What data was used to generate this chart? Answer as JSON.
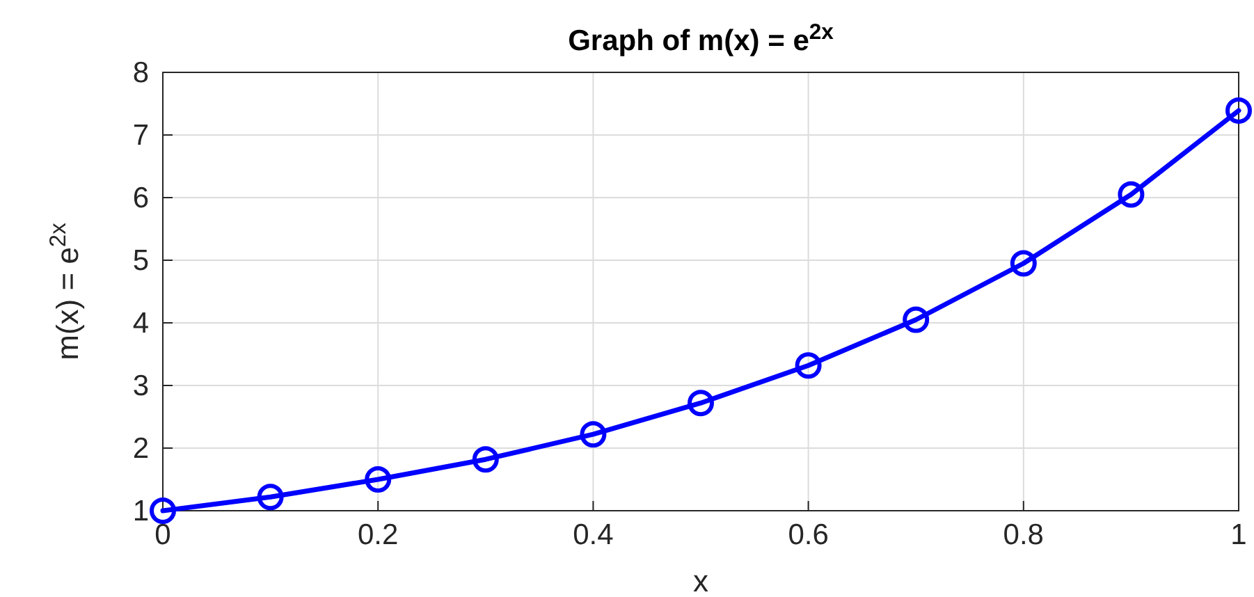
{
  "chart_data": {
    "type": "line",
    "title": "Graph of m(x) = e$^{2x}$",
    "xlabel": "x",
    "ylabel": "m(x) = e$^{2x}$",
    "x": [
      0,
      0.1,
      0.2,
      0.3,
      0.4,
      0.5,
      0.6,
      0.7,
      0.8,
      0.9,
      1
    ],
    "series": [
      {
        "color": "#0000ff",
        "values": [
          1,
          1.22,
          1.5,
          1.82,
          2.22,
          2.72,
          3.32,
          4.05,
          4.95,
          6.05,
          7.39
        ]
      }
    ],
    "xlim": [
      0,
      1
    ],
    "xticks": [
      0,
      0.2,
      0.4,
      0.6,
      0.8,
      1
    ],
    "ylim": [
      1,
      8
    ],
    "yticks": [
      1,
      2,
      3,
      4,
      5,
      6,
      7,
      8
    ],
    "grid": true,
    "marker": "circle",
    "line_style": "solid"
  }
}
